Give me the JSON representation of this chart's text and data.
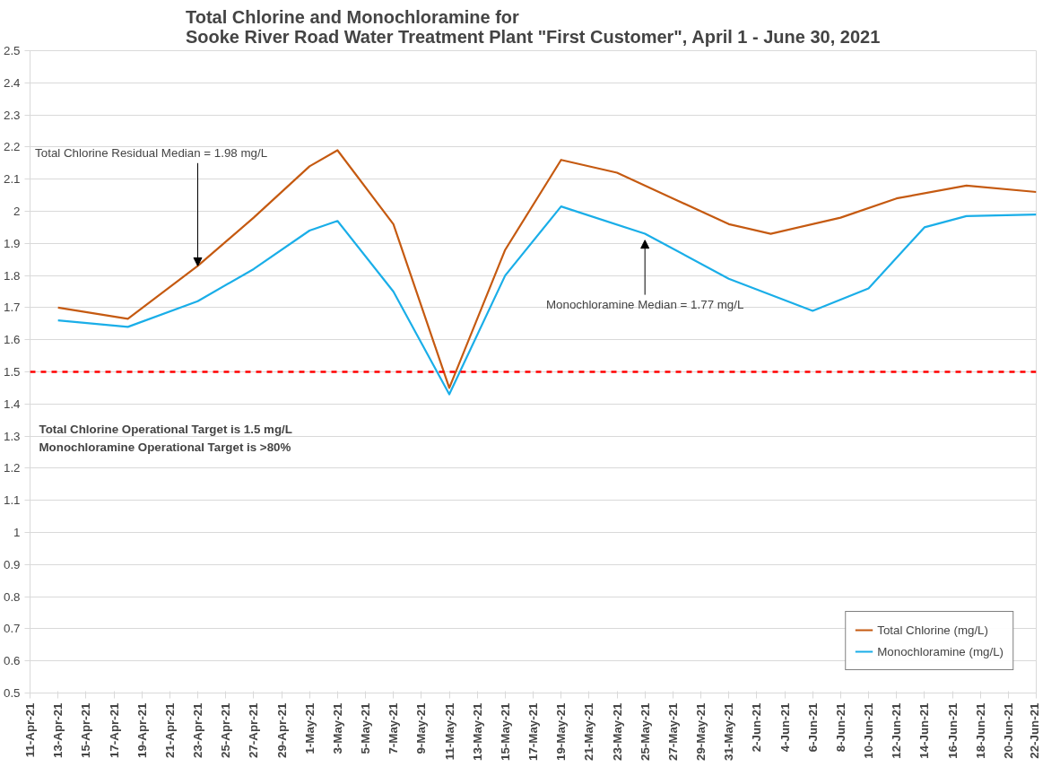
{
  "chart_data": {
    "type": "line",
    "title": "Total Chlorine and Monochloramine for\nSooke River Road Water Treatment Plant \"First Customer\", April 1 - June 30, 2021",
    "series": [
      {
        "name": "Total Chlorine (mg/L)",
        "color": "#c55a11",
        "x": [
          "2021-04-13",
          "2021-04-18",
          "2021-04-23",
          "2021-04-27",
          "2021-05-01",
          "2021-05-03",
          "2021-05-07",
          "2021-05-11",
          "2021-05-15",
          "2021-05-19",
          "2021-05-23",
          "2021-05-27",
          "2021-05-31",
          "2021-06-03",
          "2021-06-08",
          "2021-06-12",
          "2021-06-17",
          "2021-06-22"
        ],
        "values": [
          1.7,
          1.665,
          1.83,
          1.98,
          2.14,
          2.19,
          1.96,
          1.45,
          1.88,
          2.16,
          2.12,
          2.04,
          1.96,
          1.93,
          1.98,
          2.04,
          2.08,
          2.06
        ]
      },
      {
        "name": "Monochloramine (mg/L)",
        "color": "#1aaee8",
        "x": [
          "2021-04-13",
          "2021-04-18",
          "2021-04-23",
          "2021-04-27",
          "2021-05-01",
          "2021-05-03",
          "2021-05-07",
          "2021-05-11",
          "2021-05-15",
          "2021-05-19",
          "2021-05-25",
          "2021-05-31",
          "2021-06-06",
          "2021-06-10",
          "2021-06-14",
          "2021-06-17",
          "2021-06-22"
        ],
        "values": [
          1.66,
          1.64,
          1.72,
          1.82,
          1.94,
          1.97,
          1.75,
          1.43,
          1.8,
          2.015,
          1.93,
          1.79,
          1.69,
          1.76,
          1.95,
          1.985,
          1.99
        ]
      }
    ],
    "annotations": [
      {
        "text": "Total Chlorine Residual Median = 1.98 mg/L",
        "x": "2021-04-23",
        "y": 1.82
      },
      {
        "text": "Monochloramine Median = 1.77 mg/L",
        "x": "2021-05-25",
        "y": 1.93
      },
      "Total Chlorine Operational Target is 1.5 mg/L",
      "Monochloramine Operational Target is >80%"
    ],
    "ref_lines": [
      {
        "axis": "y",
        "value": 1.5,
        "label": null,
        "color": "#ff0000",
        "line_style": "dashed"
      }
    ],
    "xlim": [
      "2021-04-11",
      "2021-06-22"
    ],
    "xticks": [
      {
        "value": "2021-04-11",
        "label": "11-Apr-21"
      },
      {
        "value": "2021-04-13",
        "label": "13-Apr-21"
      },
      {
        "value": "2021-04-15",
        "label": "15-Apr-21"
      },
      {
        "value": "2021-04-17",
        "label": "17-Apr-21"
      },
      {
        "value": "2021-04-19",
        "label": "19-Apr-21"
      },
      {
        "value": "2021-04-21",
        "label": "21-Apr-21"
      },
      {
        "value": "2021-04-23",
        "label": "23-Apr-21"
      },
      {
        "value": "2021-04-25",
        "label": "25-Apr-21"
      },
      {
        "value": "2021-04-27",
        "label": "27-Apr-21"
      },
      {
        "value": "2021-04-29",
        "label": "29-Apr-21"
      },
      {
        "value": "2021-05-01",
        "label": "1-May-21"
      },
      {
        "value": "2021-05-03",
        "label": "3-May-21"
      },
      {
        "value": "2021-05-05",
        "label": "5-May-21"
      },
      {
        "value": "2021-05-07",
        "label": "7-May-21"
      },
      {
        "value": "2021-05-09",
        "label": "9-May-21"
      },
      {
        "value": "2021-05-11",
        "label": "11-May-21"
      },
      {
        "value": "2021-05-13",
        "label": "13-May-21"
      },
      {
        "value": "2021-05-15",
        "label": "15-May-21"
      },
      {
        "value": "2021-05-17",
        "label": "17-May-21"
      },
      {
        "value": "2021-05-19",
        "label": "19-May-21"
      },
      {
        "value": "2021-05-21",
        "label": "21-May-21"
      },
      {
        "value": "2021-05-23",
        "label": "23-May-21"
      },
      {
        "value": "2021-05-25",
        "label": "25-May-21"
      },
      {
        "value": "2021-05-27",
        "label": "27-May-21"
      },
      {
        "value": "2021-05-29",
        "label": "29-May-21"
      },
      {
        "value": "2021-05-31",
        "label": "31-May-21"
      },
      {
        "value": "2021-06-02",
        "label": "2-Jun-21"
      },
      {
        "value": "2021-06-04",
        "label": "4-Jun-21"
      },
      {
        "value": "2021-06-06",
        "label": "6-Jun-21"
      },
      {
        "value": "2021-06-08",
        "label": "8-Jun-21"
      },
      {
        "value": "2021-06-10",
        "label": "10-Jun-21"
      },
      {
        "value": "2021-06-12",
        "label": "12-Jun-21"
      },
      {
        "value": "2021-06-14",
        "label": "14-Jun-21"
      },
      {
        "value": "2021-06-16",
        "label": "16-Jun-21"
      },
      {
        "value": "2021-06-18",
        "label": "18-Jun-21"
      },
      {
        "value": "2021-06-20",
        "label": "20-Jun-21"
      },
      {
        "value": "2021-06-22",
        "label": "22-Jun-21"
      }
    ],
    "ylim": [
      0.5,
      2.5
    ],
    "yticks": [
      0.5,
      0.6,
      0.7,
      0.8,
      0.9,
      1,
      1.1,
      1.2,
      1.3,
      1.4,
      1.5,
      1.6,
      1.7,
      1.8,
      1.9,
      2,
      2.1,
      2.2,
      2.3,
      2.4,
      2.5
    ],
    "grid": "y",
    "legend": "bottom right",
    "marker": "none",
    "line_style": "solid"
  }
}
